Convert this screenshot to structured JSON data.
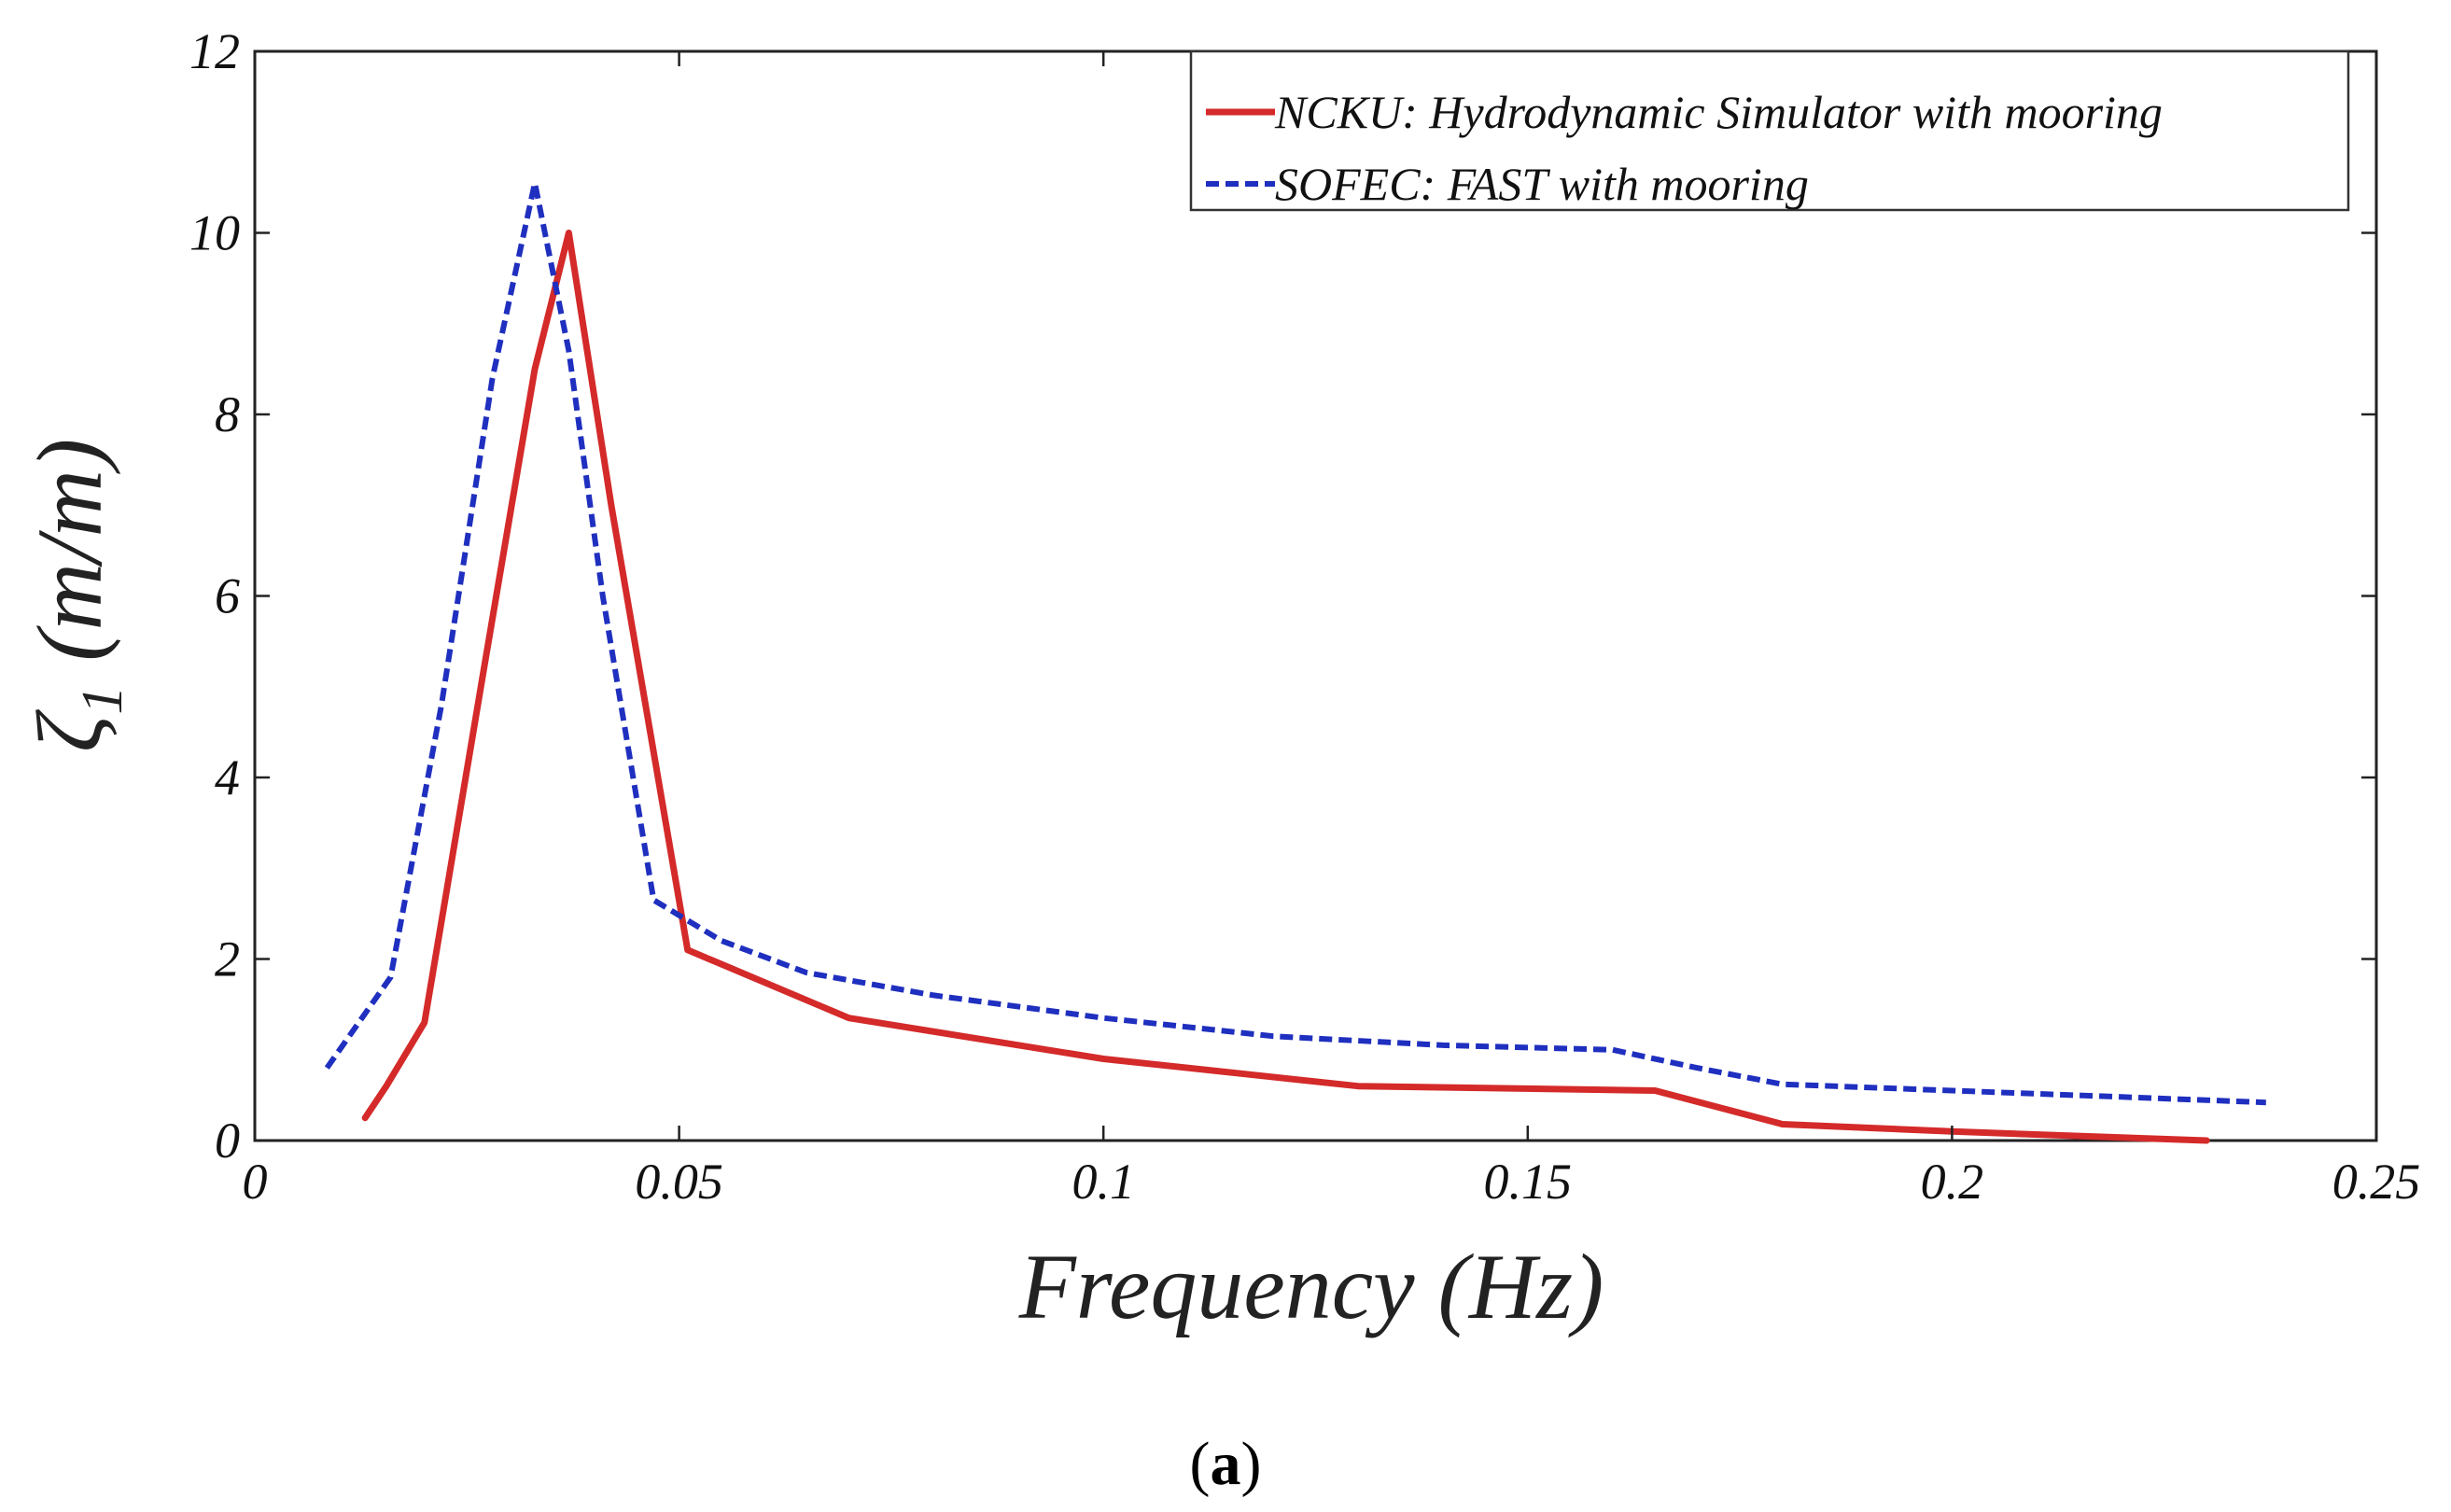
{
  "chart_data": {
    "type": "line",
    "title": "",
    "xlabel": "Frequency (Hz)",
    "ylabel_symbol": "ζ",
    "ylabel_subscript": "1",
    "ylabel_unit": "(m/m)",
    "xlim": [
      0,
      0.25
    ],
    "ylim": [
      0,
      12
    ],
    "xticks": [
      0,
      0.05,
      0.1,
      0.15,
      0.2,
      0.25
    ],
    "xtick_labels": [
      "0",
      "0.05",
      "0.1",
      "0.15",
      "0.2",
      "0.25"
    ],
    "yticks": [
      0,
      2,
      4,
      6,
      8,
      10,
      12
    ],
    "ytick_labels": [
      "0",
      "2",
      "4",
      "6",
      "8",
      "10",
      "12"
    ],
    "grid": false,
    "legend_position": "top-right",
    "caption": {
      "open": "(",
      "letter": "a",
      "close": ")"
    },
    "series": [
      {
        "name": "NCKU: Hydrodynamic Simulator with mooring",
        "color": "#d42a2a",
        "style": "solid",
        "x": [
          0.013,
          0.0155,
          0.02,
          0.027,
          0.033,
          0.037,
          0.042,
          0.051,
          0.07,
          0.1,
          0.13,
          0.165,
          0.18,
          0.2,
          0.23
        ],
        "y": [
          0.25,
          0.6,
          1.3,
          5.2,
          8.5,
          10.0,
          7.0,
          2.1,
          1.35,
          0.9,
          0.6,
          0.55,
          0.18,
          0.1,
          0.0
        ]
      },
      {
        "name": "SOFEC: FAST with mooring",
        "color": "#1f2fbf",
        "style": "dashed",
        "x": [
          0.0085,
          0.016,
          0.022,
          0.028,
          0.033,
          0.037,
          0.041,
          0.047,
          0.055,
          0.065,
          0.08,
          0.1,
          0.12,
          0.14,
          0.16,
          0.17,
          0.18,
          0.2,
          0.22,
          0.237
        ],
        "y": [
          0.8,
          1.8,
          4.8,
          8.4,
          10.55,
          8.7,
          6.0,
          2.65,
          2.2,
          1.85,
          1.6,
          1.35,
          1.15,
          1.05,
          1.0,
          0.8,
          0.62,
          0.55,
          0.48,
          0.42
        ]
      }
    ]
  }
}
